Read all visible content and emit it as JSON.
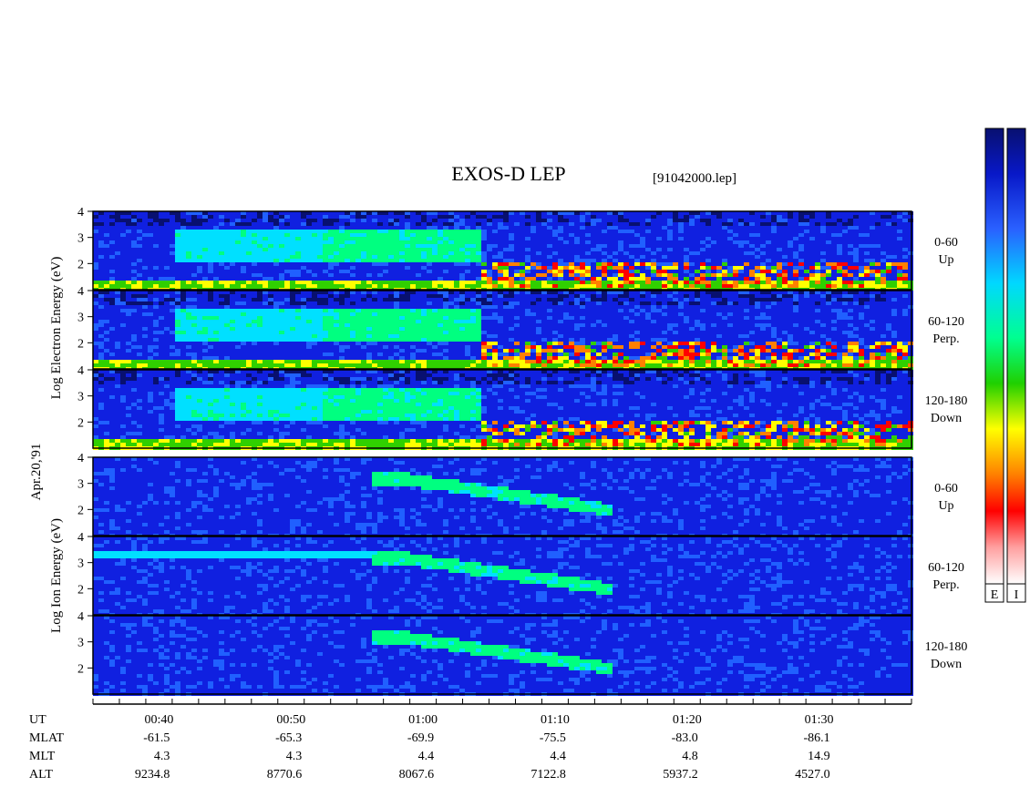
{
  "chart_data": {
    "type": "heatmap",
    "title": "EXOS-D LEP",
    "file_label": "[91042000.lep]",
    "date_label": "Apr.20,'91",
    "electron_ylabel": "Log  Electron  Energy (eV)",
    "ion_ylabel": "Log  Ion  Energy (eV)",
    "ylim": [
      1,
      4
    ],
    "y_ticks": [
      "4",
      "3",
      "2"
    ],
    "x_range_minutes": [
      35,
      97
    ],
    "panels": [
      {
        "species": "Electron",
        "pitch_range": "0-60",
        "direction": "Up"
      },
      {
        "species": "Electron",
        "pitch_range": "60-120",
        "direction": "Perp."
      },
      {
        "species": "Electron",
        "pitch_range": "120-180",
        "direction": "Down"
      },
      {
        "species": "Ion",
        "pitch_range": "0-60",
        "direction": "Up"
      },
      {
        "species": "Ion",
        "pitch_range": "60-120",
        "direction": "Perp."
      },
      {
        "species": "Ion",
        "pitch_range": "120-180",
        "direction": "Down"
      }
    ],
    "ephemeris": {
      "row_labels": [
        "UT",
        "MLAT",
        "MLT",
        "ALT"
      ],
      "columns": [
        {
          "UT": "00:40",
          "MLAT": "-61.5",
          "MLT": "4.3",
          "ALT": "9234.8"
        },
        {
          "UT": "00:50",
          "MLAT": "-65.3",
          "MLT": "4.3",
          "ALT": "8770.6"
        },
        {
          "UT": "01:00",
          "MLAT": "-69.9",
          "MLT": "4.4",
          "ALT": "8067.6"
        },
        {
          "UT": "01:10",
          "MLAT": "-75.5",
          "MLT": "4.4",
          "ALT": "7122.8"
        },
        {
          "UT": "01:20",
          "MLAT": "-83.0",
          "MLT": "4.8",
          "ALT": "5937.2"
        },
        {
          "UT": "01:30",
          "MLAT": "-86.1",
          "MLT": "14.9",
          "ALT": "4527.0"
        }
      ]
    },
    "colorbars": [
      {
        "label": "E",
        "species": "Electron"
      },
      {
        "label": "I",
        "species": "Ion"
      }
    ],
    "colormap": [
      "#081070",
      "#1020e0",
      "#2060ff",
      "#00e0ff",
      "#00ff80",
      "#30d000",
      "#ffff00",
      "#ff8000",
      "#ff0000",
      "#ffa0a0",
      "#ffffff"
    ]
  }
}
